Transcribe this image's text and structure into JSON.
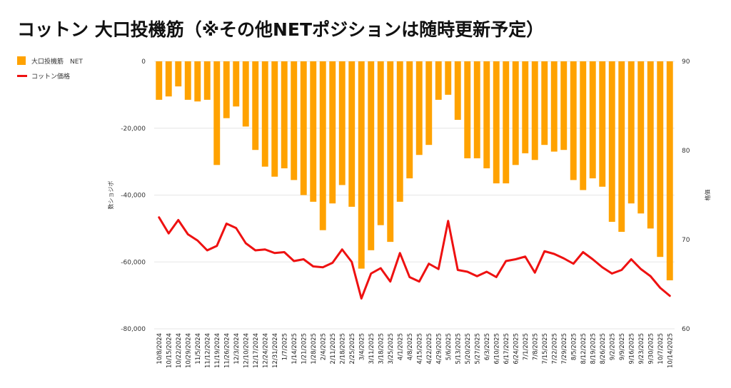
{
  "title": "コットン 大口投機筋（※その他NETポジションは随時更新予定）",
  "legend": {
    "net_label": "大口投機筋　NET",
    "price_label": "コットン価格"
  },
  "colors": {
    "bar": "#ffa200",
    "line": "#ee1111",
    "grid": "#e6e6e6"
  },
  "chart_data": {
    "type": "bar",
    "categories": [
      "10/8/2024",
      "10/15/2024",
      "10/22/2024",
      "10/29/2024",
      "11/5/2024",
      "11/12/2024",
      "11/19/2024",
      "11/26/2024",
      "12/3/2024",
      "12/10/2024",
      "12/17/2024",
      "12/24/2024",
      "12/31/2024",
      "1/7/2025",
      "1/14/2025",
      "1/21/2025",
      "1/28/2025",
      "2/4/2025",
      "2/11/2025",
      "2/18/2025",
      "2/25/2025",
      "3/4/2025",
      "3/11/2025",
      "3/18/2025",
      "3/25/2025",
      "4/1/2025",
      "4/8/2025",
      "4/15/2025",
      "4/22/2025",
      "4/29/2025",
      "5/6/2025",
      "5/13/2025",
      "5/20/2025",
      "5/27/2025",
      "6/3/2025",
      "6/10/2025",
      "6/17/2025",
      "6/24/2025",
      "7/1/2025",
      "7/8/2025",
      "7/15/2025",
      "7/22/2025",
      "7/29/2025",
      "8/5/2025",
      "8/12/2025",
      "8/19/2025",
      "8/26/2025",
      "9/2/2025",
      "9/9/2025",
      "9/16/2025",
      "9/23/2025",
      "9/30/2025",
      "10/7/2025",
      "10/14/2025"
    ],
    "series": [
      {
        "name": "大口投機筋　NET",
        "axis": "left",
        "type": "bar",
        "values": [
          -11500,
          -10500,
          -7500,
          -11500,
          -12000,
          -11500,
          -31000,
          -17000,
          -13500,
          -19500,
          -26500,
          -31500,
          -34500,
          -32000,
          -35500,
          -40000,
          -42000,
          -50500,
          -42500,
          -37000,
          -43500,
          -62000,
          -56500,
          -49000,
          -54000,
          -42000,
          -35000,
          -28000,
          -25000,
          -11500,
          -10000,
          -17500,
          -29000,
          -29000,
          -32000,
          -36500,
          -36500,
          -31000,
          -27500,
          -29500,
          -25000,
          -27000,
          -26500,
          -35500,
          -38500,
          -35000,
          -37500,
          -48000,
          -51000,
          -42500,
          -45500,
          -50000,
          -58500,
          -65500
        ]
      },
      {
        "name": "コットン価格",
        "axis": "right",
        "type": "line",
        "values": [
          72.5,
          70.7,
          72.2,
          70.6,
          69.9,
          68.8,
          69.3,
          71.8,
          71.3,
          69.6,
          68.8,
          68.9,
          68.5,
          68.6,
          67.6,
          67.8,
          67.0,
          66.9,
          67.4,
          68.9,
          67.5,
          63.4,
          66.2,
          66.8,
          65.3,
          68.5,
          65.8,
          65.3,
          67.3,
          66.7,
          72.1,
          66.6,
          66.4,
          65.9,
          66.4,
          65.8,
          67.6,
          67.8,
          68.1,
          66.3,
          68.7,
          68.4,
          67.9,
          67.3,
          68.6,
          67.8,
          66.9,
          66.2,
          66.6,
          67.8,
          66.7,
          65.9,
          64.6,
          63.7
        ]
      }
    ],
    "y_left": {
      "min": -80000,
      "max": 0,
      "ticks": [
        0,
        -20000,
        -40000,
        -60000,
        -80000
      ],
      "tick_labels": [
        "0",
        "-20,000",
        "-40,000",
        "-60,000",
        "-80,000"
      ],
      "label": "数ショジボ"
    },
    "y_right": {
      "min": 60,
      "max": 90,
      "ticks": [
        90,
        80,
        70,
        60
      ],
      "tick_labels": [
        "90",
        "80",
        "70",
        "60"
      ],
      "label": "格価"
    },
    "grid": true,
    "legend_position": "top-left"
  }
}
